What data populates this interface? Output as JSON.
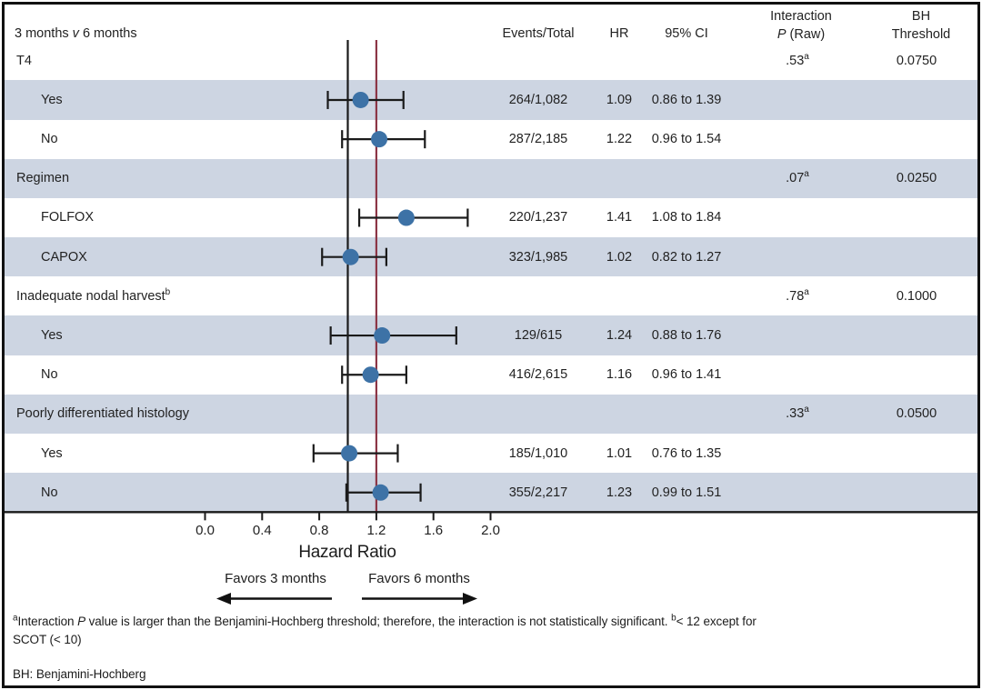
{
  "figure_title": {
    "pre": "3 months ",
    "vs": "v",
    "post": " 6 months"
  },
  "columns": {
    "events": "Events/Total",
    "hr": "HR",
    "ci": "95% CI",
    "interaction_line1": "Interaction",
    "interaction_p": "P",
    "interaction_raw": " (Raw)",
    "bh_line1": "BH",
    "bh_line2": "Threshold"
  },
  "chart_data": {
    "type": "forest",
    "title": "3 months v 6 months",
    "xlabel": "Hazard Ratio",
    "x_ticks": [
      "0.0",
      "0.4",
      "0.8",
      "1.2",
      "1.6",
      "2.0"
    ],
    "x_tick_values": [
      0.0,
      0.4,
      0.8,
      1.2,
      1.6,
      2.0
    ],
    "xlim": [
      -0.3,
      2.4
    ],
    "reference_line_hr": 1.0,
    "highlight_line_hr": 1.2,
    "favors_left": "Favors 3 months",
    "favors_right": "Favors 6 months",
    "rows": [
      {
        "kind": "group",
        "label": "T4",
        "label_sup": "",
        "p_raw": ".53",
        "p_sup": "a",
        "bh_threshold": "0.0750",
        "shaded": false
      },
      {
        "kind": "item",
        "label": "Yes",
        "events_total": "264/1,082",
        "hr": "1.09",
        "hr_value": 1.09,
        "ci_text": "0.86 to 1.39",
        "ci_low": 0.86,
        "ci_high": 1.39,
        "shaded": true
      },
      {
        "kind": "item",
        "label": "No",
        "events_total": "287/2,185",
        "hr": "1.22",
        "hr_value": 1.22,
        "ci_text": "0.96 to 1.54",
        "ci_low": 0.96,
        "ci_high": 1.54,
        "shaded": false
      },
      {
        "kind": "group",
        "label": "Regimen",
        "label_sup": "",
        "p_raw": ".07",
        "p_sup": "a",
        "bh_threshold": "0.0250",
        "shaded": true
      },
      {
        "kind": "item",
        "label": "FOLFOX",
        "events_total": "220/1,237",
        "hr": "1.41",
        "hr_value": 1.41,
        "ci_text": "1.08 to 1.84",
        "ci_low": 1.08,
        "ci_high": 1.84,
        "shaded": false
      },
      {
        "kind": "item",
        "label": "CAPOX",
        "events_total": "323/1,985",
        "hr": "1.02",
        "hr_value": 1.02,
        "ci_text": "0.82 to 1.27",
        "ci_low": 0.82,
        "ci_high": 1.27,
        "shaded": true
      },
      {
        "kind": "group",
        "label": "Inadequate nodal harvest",
        "label_sup": "b",
        "p_raw": ".78",
        "p_sup": "a",
        "bh_threshold": "0.1000",
        "shaded": false
      },
      {
        "kind": "item",
        "label": "Yes",
        "events_total": "129/615",
        "hr": "1.24",
        "hr_value": 1.24,
        "ci_text": "0.88 to 1.76",
        "ci_low": 0.88,
        "ci_high": 1.76,
        "shaded": true
      },
      {
        "kind": "item",
        "label": "No",
        "events_total": "416/2,615",
        "hr": "1.16",
        "hr_value": 1.16,
        "ci_text": "0.96 to 1.41",
        "ci_low": 0.96,
        "ci_high": 1.41,
        "shaded": false
      },
      {
        "kind": "group",
        "label": "Poorly differentiated histology",
        "label_sup": "",
        "p_raw": ".33",
        "p_sup": "a",
        "bh_threshold": "0.0500",
        "shaded": true
      },
      {
        "kind": "item",
        "label": "Yes",
        "events_total": "185/1,010",
        "hr": "1.01",
        "hr_value": 1.01,
        "ci_text": "0.76 to 1.35",
        "ci_low": 0.76,
        "ci_high": 1.35,
        "shaded": false
      },
      {
        "kind": "item",
        "label": "No",
        "events_total": "355/2,217",
        "hr": "1.23",
        "hr_value": 1.23,
        "ci_text": "0.99 to 1.51",
        "ci_low": 0.99,
        "ci_high": 1.51,
        "shaded": true
      }
    ]
  },
  "footnote": {
    "sup_a": "a",
    "part1": "Interaction ",
    "p_italic": "P",
    "part2": " value is larger than the Benjamini-Hochberg threshold; therefore, the interaction is not statistically significant. ",
    "sup_b": "b",
    "part3": "< 12 except for SCOT (< 10)"
  },
  "abbreviation_note": "BH: Benjamini-Hochberg",
  "colors": {
    "band": "#cdd5e2",
    "marker": "#3d72a6",
    "reference_line": "#1a1a1a",
    "highlight_line": "#8c3646",
    "axis": "#1a1a1a"
  }
}
